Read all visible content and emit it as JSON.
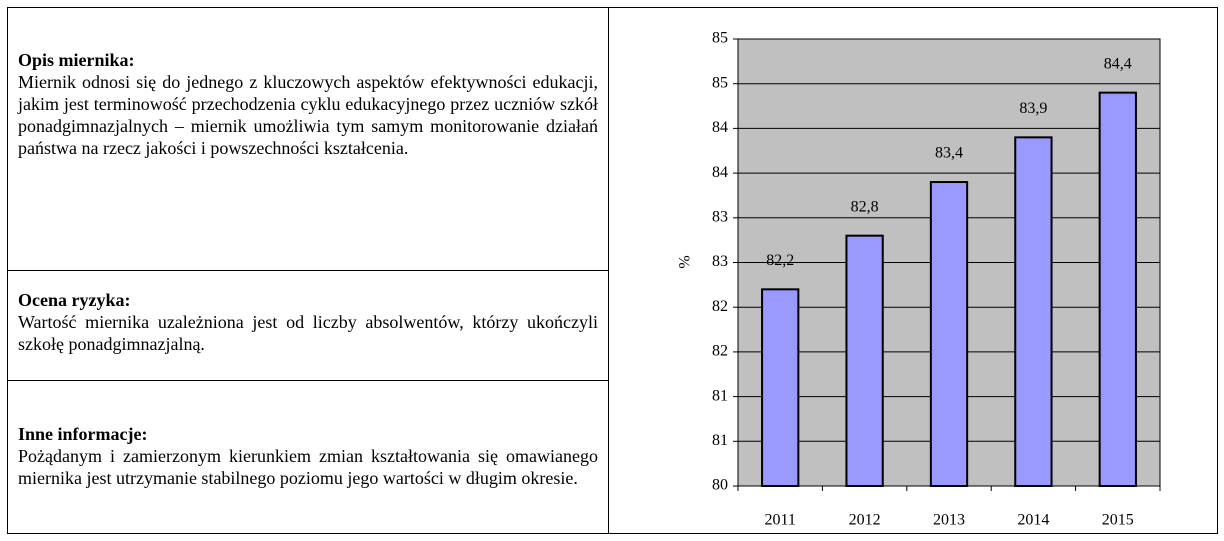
{
  "sections": [
    {
      "heading": "Opis miernika:",
      "text": "Miernik odnosi się do jednego z kluczowych aspektów efektywności edukacji, jakim jest terminowość przechodzenia cyklu edukacyjnego przez uczniów szkół ponadgimnazjalnych – miernik umożliwia tym samym monitorowanie działań państwa na rzecz jakości i powszechności kształcenia."
    },
    {
      "heading": "Ocena ryzyka:",
      "text": "Wartość miernika uzależniona jest od liczby absolwentów, którzy ukończyli szkołę ponadgimnazjalną."
    },
    {
      "heading": "Inne informacje:",
      "text": "Pożądanym i zamierzonym kierunkiem zmian kształtowania się omawianego miernika jest utrzymanie stabilnego poziomu jego wartości w długim okresie."
    }
  ],
  "chart_data": {
    "type": "bar",
    "y_label": "%",
    "categories": [
      "2011",
      "2012",
      "2013",
      "2014",
      "2015"
    ],
    "values": [
      82.2,
      82.8,
      83.4,
      83.9,
      84.4
    ],
    "value_labels": [
      "82,2",
      "82,8",
      "83,4",
      "83,9",
      "84,4"
    ],
    "color": "#9999ff",
    "plot_background": "#c0c0c0",
    "grid": true,
    "ylim": [
      80,
      85
    ],
    "yticks": [
      80,
      {
        "value": 80.5,
        "label": "81"
      },
      81,
      {
        "value": 81.5,
        "label": "82"
      },
      82,
      {
        "value": 82.5,
        "label": "83"
      },
      83,
      {
        "value": 83.5,
        "label": "84"
      },
      84,
      {
        "value": 84.5,
        "label": "85"
      },
      85
    ]
  }
}
